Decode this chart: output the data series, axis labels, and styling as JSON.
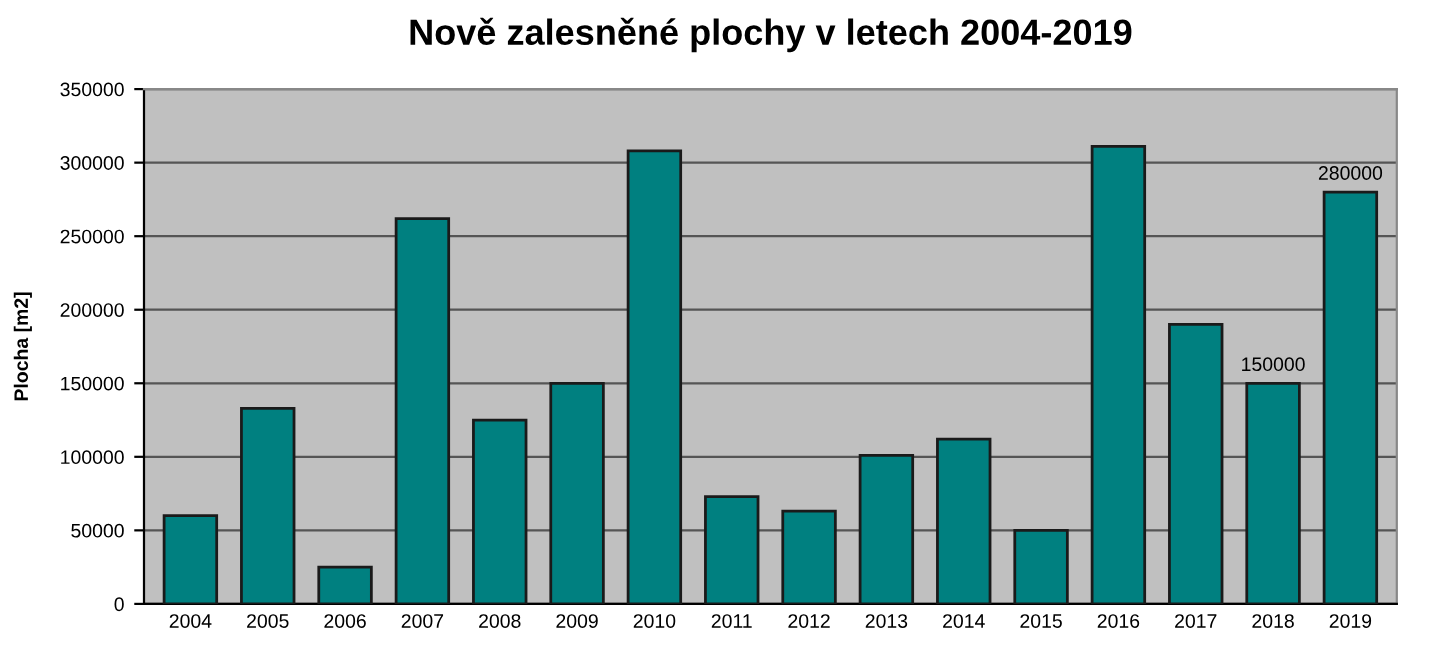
{
  "chart_data": {
    "type": "bar",
    "title": "Nově zalesněné plochy v letech 2004-2019",
    "ylabel": "Plocha [m2]",
    "categories": [
      "2004",
      "2005",
      "2006",
      "2007",
      "2008",
      "2009",
      "2010",
      "2011",
      "2012",
      "2013",
      "2014",
      "2015",
      "2016",
      "2017",
      "2018",
      "2019"
    ],
    "values": [
      60000,
      133000,
      25000,
      262000,
      125000,
      150000,
      308000,
      73000,
      63000,
      101000,
      112000,
      50000,
      311000,
      190000,
      150000,
      280000
    ],
    "value_labels": [
      null,
      null,
      null,
      null,
      null,
      null,
      null,
      null,
      null,
      null,
      null,
      null,
      null,
      null,
      "150000",
      "280000"
    ],
    "color": "#008080",
    "ylim": [
      0,
      350000
    ],
    "yticks": [
      0,
      50000,
      100000,
      150000,
      200000,
      250000,
      300000,
      350000
    ],
    "grid": "y",
    "legend": false
  }
}
